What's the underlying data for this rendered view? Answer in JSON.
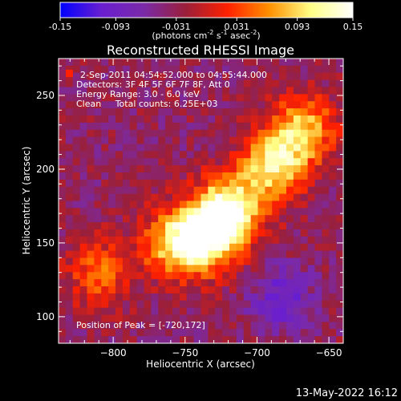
{
  "chart_data": {
    "type": "heatmap",
    "title": "Reconstructed RHESSI Image",
    "xlabel": "Heliocentric X (arcsec)",
    "ylabel": "Heliocentric Y (arcsec)",
    "xlim": [
      -838,
      -640
    ],
    "ylim": [
      82,
      275
    ],
    "xticks": [
      -800,
      -750,
      -700,
      -650
    ],
    "yticks": [
      100,
      150,
      200,
      250
    ],
    "colorbar": {
      "min": -0.15,
      "max": 0.15,
      "ticks": [
        "-0.15",
        "-0.093",
        "-0.031",
        "0.031",
        "0.093",
        "0.15"
      ],
      "tick_values": [
        -0.15,
        -0.093,
        -0.031,
        0.031,
        0.093,
        0.15
      ],
      "units_parts": [
        "(photons cm",
        "-2",
        " s",
        "-1",
        " asec",
        "-2",
        ")"
      ],
      "colors": [
        "#0000ff",
        "#6a1fd0",
        "#7a2aa8",
        "#9a1f3a",
        "#ff2000",
        "#ff9000",
        "#ffff88",
        "#ffffff"
      ]
    },
    "grid": false,
    "info_lines": [
      "2-Sep-2011 04:54:52.000 to 04:55:44.000",
      "Detectors: 3F 4F 5F 6F 7F 8F, Att 0",
      "Energy Range: 3.0 - 6.0 keV",
      "Clean     Total counts: 6.25E+03"
    ],
    "peak_label": "Position of Peak = [-720,172]",
    "peak_position": [
      -720,
      172
    ],
    "emission_sources": [
      {
        "x": -720,
        "y": 172,
        "peak": 0.15
      },
      {
        "x": -738,
        "y": 152,
        "peak": 0.13
      },
      {
        "x": -688,
        "y": 202,
        "peak": 0.11
      },
      {
        "x": -668,
        "y": 228,
        "peak": 0.09
      },
      {
        "x": -760,
        "y": 150,
        "peak": 0.07
      },
      {
        "x": -810,
        "y": 130,
        "peak": 0.05
      }
    ]
  },
  "footer": {
    "timestamp": "13-May-2022 16:12"
  }
}
